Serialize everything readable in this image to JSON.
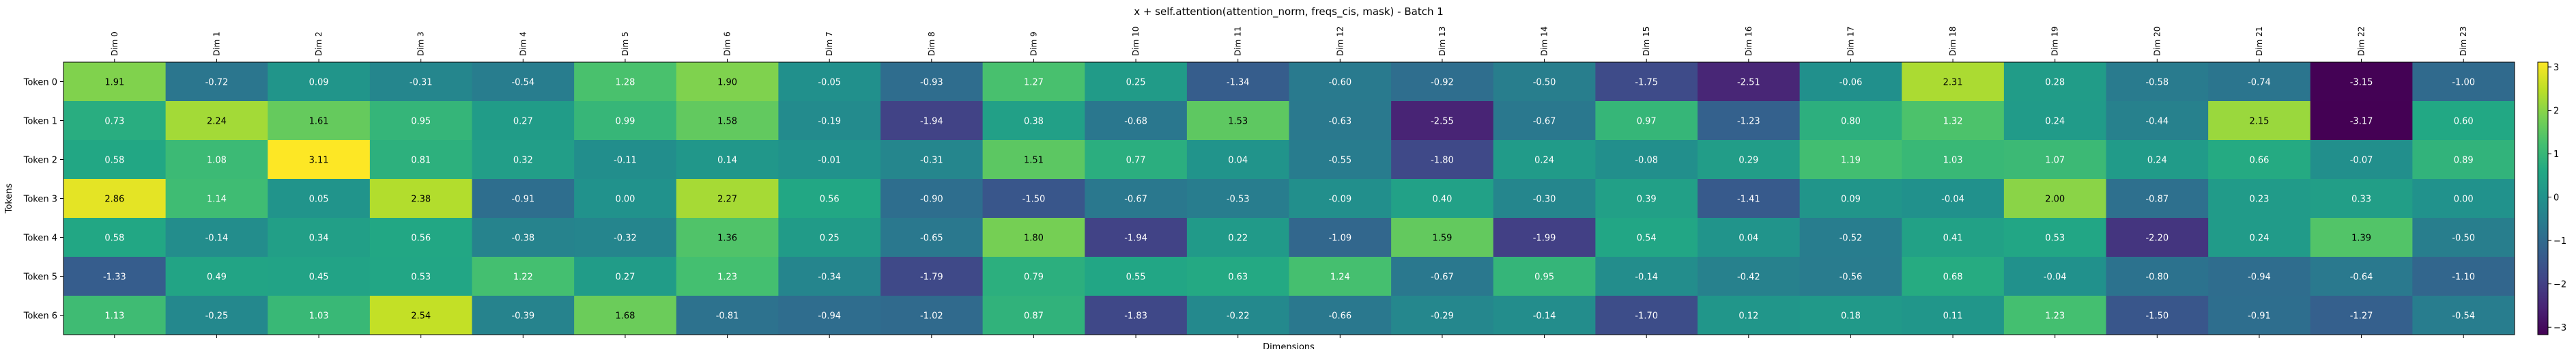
{
  "chart_data": {
    "type": "heatmap",
    "title": "x + self.attention(attention_norm, freqs_cis, mask) - Batch 1",
    "xlabel": "Dimensions",
    "ylabel": "Tokens",
    "x_labels": [
      "Dim 0",
      "Dim 1",
      "Dim 2",
      "Dim 3",
      "Dim 4",
      "Dim 5",
      "Dim 6",
      "Dim 7",
      "Dim 8",
      "Dim 9",
      "Dim 10",
      "Dim 11",
      "Dim 12",
      "Dim 13",
      "Dim 14",
      "Dim 15",
      "Dim 16",
      "Dim 17",
      "Dim 18",
      "Dim 19",
      "Dim 20",
      "Dim 21",
      "Dim 22",
      "Dim 23"
    ],
    "y_labels": [
      "Token 0",
      "Token 1",
      "Token 2",
      "Token 3",
      "Token 4",
      "Token 5",
      "Token 6"
    ],
    "values": [
      [
        1.91,
        -0.72,
        0.09,
        -0.31,
        -0.54,
        1.28,
        1.9,
        -0.05,
        -0.93,
        1.27,
        0.25,
        -1.34,
        -0.6,
        -0.92,
        -0.5,
        -1.75,
        -2.51,
        -0.06,
        2.31,
        0.28,
        -0.58,
        -0.74,
        -3.15,
        -1.0
      ],
      [
        0.73,
        2.24,
        1.61,
        0.95,
        0.27,
        0.99,
        1.58,
        -0.19,
        -1.94,
        0.38,
        -0.68,
        1.53,
        -0.63,
        -2.55,
        -0.67,
        0.97,
        -1.23,
        0.8,
        1.32,
        0.24,
        -0.44,
        2.15,
        -3.17,
        0.6
      ],
      [
        0.58,
        1.08,
        3.11,
        0.81,
        0.32,
        -0.11,
        0.14,
        -0.01,
        -0.31,
        1.51,
        0.77,
        0.04,
        -0.55,
        -1.8,
        0.24,
        -0.08,
        0.29,
        1.19,
        1.03,
        1.07,
        0.24,
        0.66,
        -0.07,
        0.89
      ],
      [
        2.86,
        1.14,
        0.05,
        2.38,
        -0.91,
        0.0,
        2.27,
        0.56,
        -0.9,
        -1.5,
        -0.67,
        -0.53,
        -0.09,
        0.4,
        -0.3,
        0.39,
        -1.41,
        0.09,
        -0.04,
        2.0,
        -0.87,
        0.23,
        0.33,
        0.0
      ],
      [
        0.58,
        -0.14,
        0.34,
        0.56,
        -0.38,
        -0.32,
        1.36,
        0.25,
        -0.65,
        1.8,
        -1.94,
        0.22,
        -1.09,
        1.59,
        -1.99,
        0.54,
        0.04,
        -0.52,
        0.41,
        0.53,
        -2.2,
        0.24,
        1.39,
        -0.5
      ],
      [
        -1.33,
        0.49,
        0.45,
        0.53,
        1.22,
        0.27,
        1.23,
        -0.34,
        -1.79,
        0.79,
        0.55,
        0.63,
        1.24,
        -0.67,
        0.95,
        -0.14,
        -0.42,
        -0.56,
        0.68,
        -0.04,
        -0.8,
        -0.94,
        -0.64,
        -1.1
      ],
      [
        1.13,
        -0.25,
        1.03,
        2.54,
        -0.39,
        1.68,
        -0.81,
        -0.94,
        -1.02,
        0.87,
        -1.83,
        -0.22,
        -0.66,
        -0.29,
        -0.14,
        -1.7,
        0.12,
        0.18,
        0.11,
        1.23,
        -1.5,
        -0.91,
        -1.27,
        -0.54
      ]
    ],
    "colormap": "viridis",
    "vmin": -3.17,
    "vmax": 3.11,
    "colorbar_ticks": [
      -3,
      -2,
      -1,
      0,
      1,
      2,
      3
    ]
  }
}
